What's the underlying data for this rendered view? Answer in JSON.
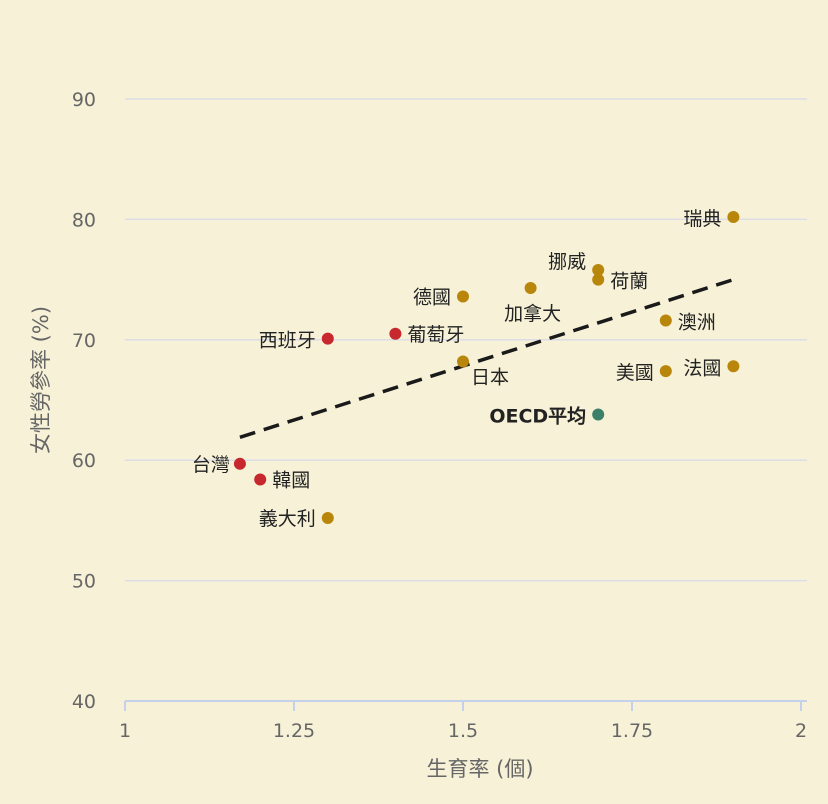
{
  "chart_data": {
    "type": "scatter",
    "xlabel": "生育率 (個)",
    "ylabel": "女性勞參率 (%)",
    "xlim": [
      1,
      2
    ],
    "ylim": [
      40,
      90
    ],
    "xticks": [
      "1",
      "1.25",
      "1.5",
      "1.75",
      "2"
    ],
    "yticks": [
      "40",
      "50",
      "60",
      "70",
      "80",
      "90"
    ],
    "grid": "horizontal",
    "colors": {
      "highlight": "#c6282d",
      "other": "#b8860b",
      "oecd": "#3b8068",
      "trend": "#1a1a1a",
      "grid": "#dcdde6",
      "axis": "#c5d1ea"
    },
    "points": [
      {
        "label": "瑞典",
        "x": 1.9,
        "y": 80.2,
        "group": "other"
      },
      {
        "label": "挪威",
        "x": 1.7,
        "y": 75.8,
        "group": "other"
      },
      {
        "label": "荷蘭",
        "x": 1.7,
        "y": 75.0,
        "group": "other"
      },
      {
        "label": "加拿大",
        "x": 1.6,
        "y": 74.3,
        "group": "other"
      },
      {
        "label": "德國",
        "x": 1.5,
        "y": 73.6,
        "group": "other"
      },
      {
        "label": "澳洲",
        "x": 1.8,
        "y": 71.6,
        "group": "other"
      },
      {
        "label": "葡萄牙",
        "x": 1.4,
        "y": 70.5,
        "group": "highlight"
      },
      {
        "label": "西班牙",
        "x": 1.3,
        "y": 70.1,
        "group": "highlight"
      },
      {
        "label": "日本",
        "x": 1.5,
        "y": 68.2,
        "group": "other"
      },
      {
        "label": "法國",
        "x": 1.9,
        "y": 67.8,
        "group": "other"
      },
      {
        "label": "美國",
        "x": 1.8,
        "y": 67.4,
        "group": "other"
      },
      {
        "label": "OECD平均",
        "x": 1.7,
        "y": 63.8,
        "group": "oecd"
      },
      {
        "label": "台灣",
        "x": 1.17,
        "y": 59.7,
        "group": "highlight"
      },
      {
        "label": "韓國",
        "x": 1.2,
        "y": 58.4,
        "group": "highlight"
      },
      {
        "label": "義大利",
        "x": 1.3,
        "y": 55.2,
        "group": "other"
      }
    ],
    "trendline": {
      "x": [
        1.17,
        1.9
      ],
      "y": [
        61.9,
        75.0
      ],
      "style": "dashed"
    }
  }
}
